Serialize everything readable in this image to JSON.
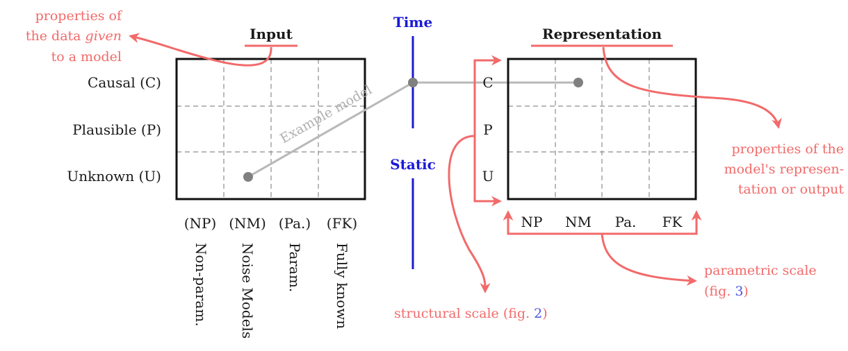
{
  "input": {
    "title": "Input",
    "rows": [
      "Causal (C)",
      "Plausible (P)",
      "Unknown (U)"
    ],
    "cols_short": [
      "(NP)",
      "(NM)",
      "(Pa.)",
      "(FK)"
    ],
    "cols_long": [
      "Non-param.",
      "Noise Models",
      "Param.",
      "Fully known"
    ]
  },
  "axis": {
    "time": "Time",
    "static": "Static"
  },
  "representation": {
    "title": "Representation",
    "rows": [
      "C",
      "P",
      "U"
    ],
    "cols": [
      "NP",
      "NM",
      "Pa.",
      "FK"
    ]
  },
  "example_label": "Example model",
  "annotations": {
    "data_props": {
      "line1": "properties of",
      "line2_prefix": "the data ",
      "line2_italic": "given",
      "line3": "to a model"
    },
    "model_props": {
      "line1": "properties of the",
      "line2": "model's represen-",
      "line3": "tation or output"
    },
    "structural": {
      "text": "structural scale (fig. ",
      "ref": "2",
      "close": ")"
    },
    "parametric": {
      "line1": "parametric scale",
      "line2_open": "(fig. ",
      "ref": "3",
      "close": ")"
    }
  },
  "colors": {
    "annotation": "#f26a6a",
    "axis": "#1a1ad6",
    "reference": "#4a55e6",
    "example": "#b8b8b8",
    "point": "#808080"
  }
}
